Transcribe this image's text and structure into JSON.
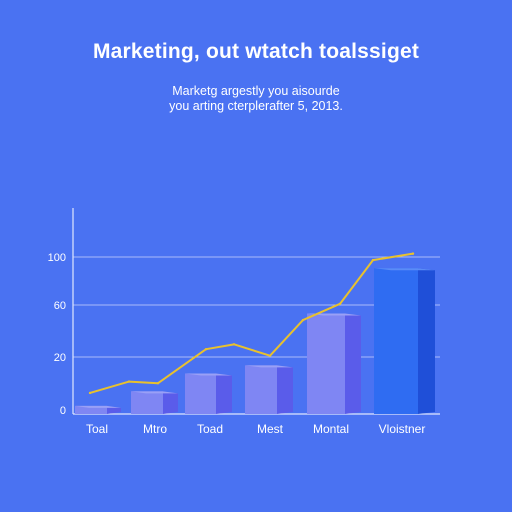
{
  "title": "Marketing, out wtatch toalssiget",
  "subtitle_lines": [
    "Marketg argestly you aisourde",
    "you arting cterplerafter 5, 2013."
  ],
  "colors": {
    "background": "#4a72f2",
    "bar_front": "#7f86f3",
    "bar_side": "#5a5cea",
    "bar_top": "#9aa0f6",
    "highlight_front": "#2f6cf2",
    "highlight_side": "#1f4fd8",
    "line": "#e8c12e",
    "grid": "#c9d4fb"
  },
  "chart_data": {
    "type": "bar",
    "categories": [
      "Toal",
      "Mtro",
      "Toad",
      "Mest",
      "Montal",
      "Vloistner"
    ],
    "values": [
      5,
      14,
      25,
      30,
      62,
      90
    ],
    "y_ticks": [
      "0",
      "20",
      "60",
      "100"
    ],
    "ylim": [
      0,
      100
    ],
    "line_series": {
      "values": [
        13,
        20,
        19,
        40,
        43,
        36,
        58,
        68,
        95,
        99
      ]
    },
    "grid": true
  }
}
